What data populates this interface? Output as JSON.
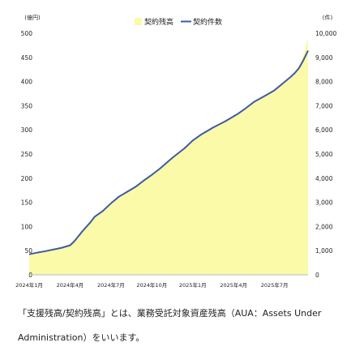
{
  "chart_data": {
    "type": "area+line",
    "legend": [
      "契約残高",
      "契約件数"
    ],
    "legend_position": "top-center",
    "left_axis": {
      "unit_label": "(億円)",
      "range": [
        0,
        500
      ],
      "ticks": [
        0,
        50,
        100,
        150,
        200,
        250,
        300,
        350,
        400,
        450,
        500
      ]
    },
    "right_axis": {
      "unit_label": "(件)",
      "range": [
        0,
        10000
      ],
      "ticks": [
        "0",
        "1,000",
        "2,000",
        "3,000",
        "4,000",
        "5,000",
        "6,000",
        "7,000",
        "8,000",
        "9,000",
        "10,000"
      ]
    },
    "x_tick_labels": [
      "2024年1月",
      "2024年4月",
      "2024年7月",
      "2024年10月",
      "2025年1月",
      "2025年4月",
      "2025年7月"
    ],
    "grid": false,
    "colors": {
      "balance": "#fafaa8",
      "count": "#3d59a8"
    },
    "series": [
      {
        "name": "契約残高",
        "axis": "left",
        "type": "area",
        "x": [
          0,
          0.2,
          0.4,
          0.6,
          0.8,
          1.0,
          1.1,
          1.3,
          1.5,
          1.6,
          1.8,
          2.0,
          2.2,
          2.4,
          2.6,
          2.8,
          3.0,
          3.2,
          3.5,
          3.8,
          4.0,
          4.2,
          4.5,
          4.8,
          5.0,
          5.1,
          5.3,
          5.5,
          5.8,
          6.0,
          6.2,
          6.4,
          6.5,
          6.6,
          6.7,
          6.82
        ],
        "values": [
          42,
          45,
          48,
          52,
          56,
          60,
          67,
          90,
          108,
          120,
          132,
          148,
          162,
          172,
          182,
          195,
          207,
          220,
          242,
          262,
          277,
          290,
          305,
          318,
          328,
          333,
          345,
          358,
          372,
          382,
          398,
          410,
          418,
          432,
          455,
          490
        ]
      },
      {
        "name": "契約件数",
        "axis": "right",
        "type": "line",
        "x": [
          0,
          0.2,
          0.4,
          0.6,
          0.8,
          1.0,
          1.1,
          1.3,
          1.5,
          1.6,
          1.8,
          2.0,
          2.2,
          2.4,
          2.6,
          2.8,
          3.0,
          3.2,
          3.5,
          3.8,
          4.0,
          4.2,
          4.5,
          4.8,
          5.0,
          5.1,
          5.3,
          5.5,
          5.8,
          6.0,
          6.2,
          6.4,
          6.5,
          6.6,
          6.7,
          6.82
        ],
        "values": [
          850,
          920,
          980,
          1050,
          1120,
          1220,
          1380,
          1800,
          2180,
          2400,
          2640,
          2960,
          3240,
          3440,
          3640,
          3900,
          4140,
          4400,
          4840,
          5240,
          5560,
          5800,
          6100,
          6360,
          6560,
          6660,
          6900,
          7160,
          7440,
          7640,
          7920,
          8200,
          8360,
          8560,
          8860,
          9280
        ]
      }
    ]
  },
  "note": {
    "line1": "「支援残高/契約残高」とは、業務受託対象資産残高（AUA：Assets Under",
    "line2": "Administration）をいいます。"
  }
}
